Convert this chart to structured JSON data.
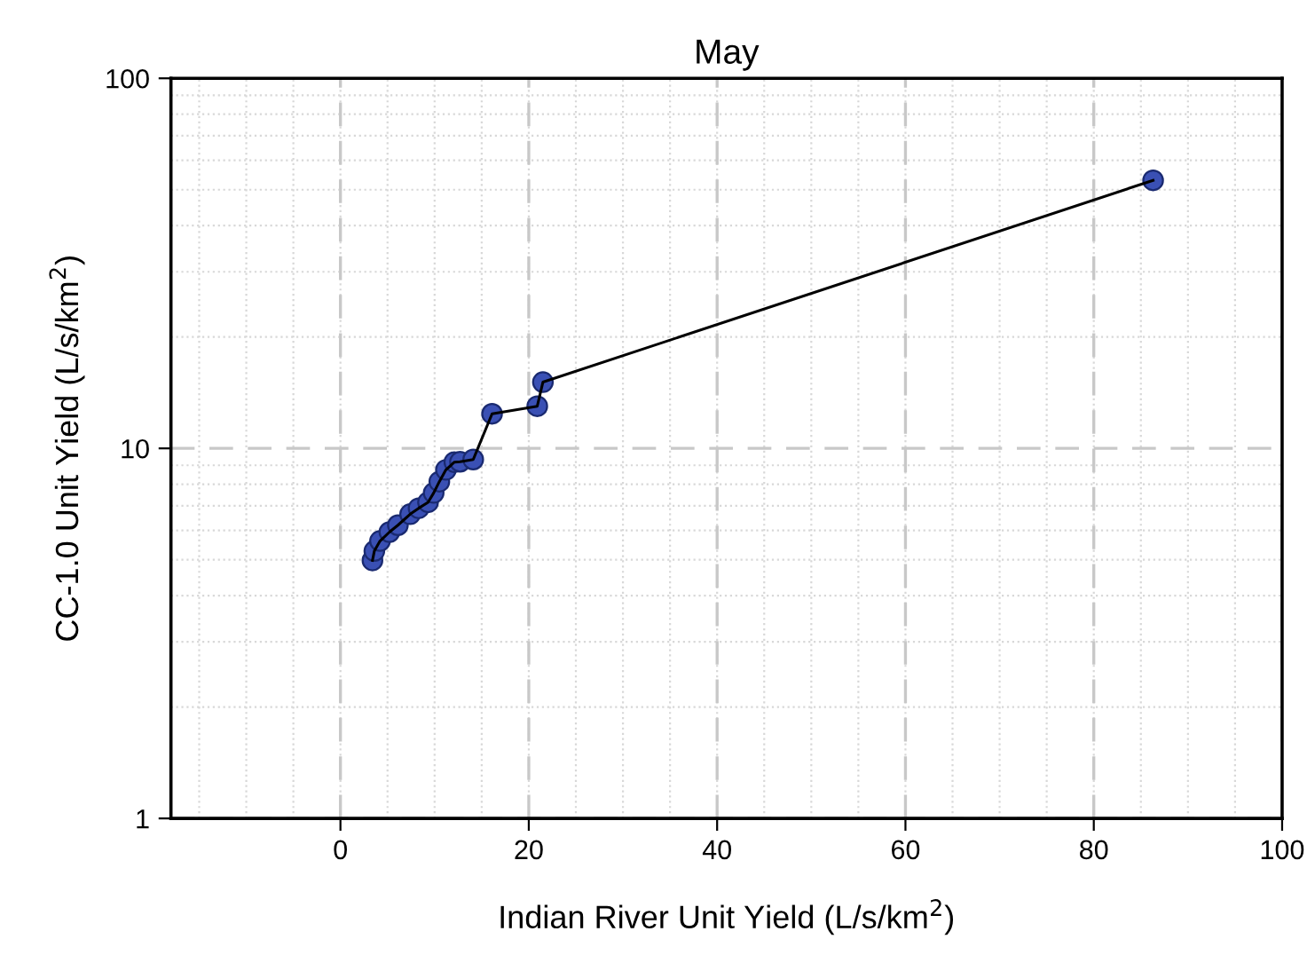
{
  "chart_data": {
    "type": "line",
    "title": "May",
    "xlabel": "Indian River Unit Yield (L/s/km$^{2}$)",
    "ylabel": "CC-1.0 Unit Yield (L/s/km$^{2}$)",
    "series": [
      {
        "color": "#3a50b4",
        "x": [
          3.4,
          3.6,
          4.2,
          5.2,
          6.1,
          7.4,
          8.3,
          9.3,
          9.9,
          10.5,
          11.2,
          12.1,
          12.7,
          14.1,
          16.1,
          20.9,
          21.5,
          86.3
        ],
        "values": [
          4.98,
          5.28,
          5.62,
          5.94,
          6.2,
          6.64,
          6.89,
          7.15,
          7.58,
          8.13,
          8.75,
          9.18,
          9.2,
          9.33,
          12.4,
          13.0,
          15.1,
          53.0
        ]
      }
    ],
    "marker": "circle",
    "line_style": "solid",
    "log": "y",
    "grid": true,
    "xlim": [
      -18,
      100
    ],
    "xticks": [
      0,
      20,
      40,
      60,
      80,
      100
    ],
    "ylim": [
      1,
      100
    ],
    "yticks": [
      1,
      10,
      100
    ]
  }
}
